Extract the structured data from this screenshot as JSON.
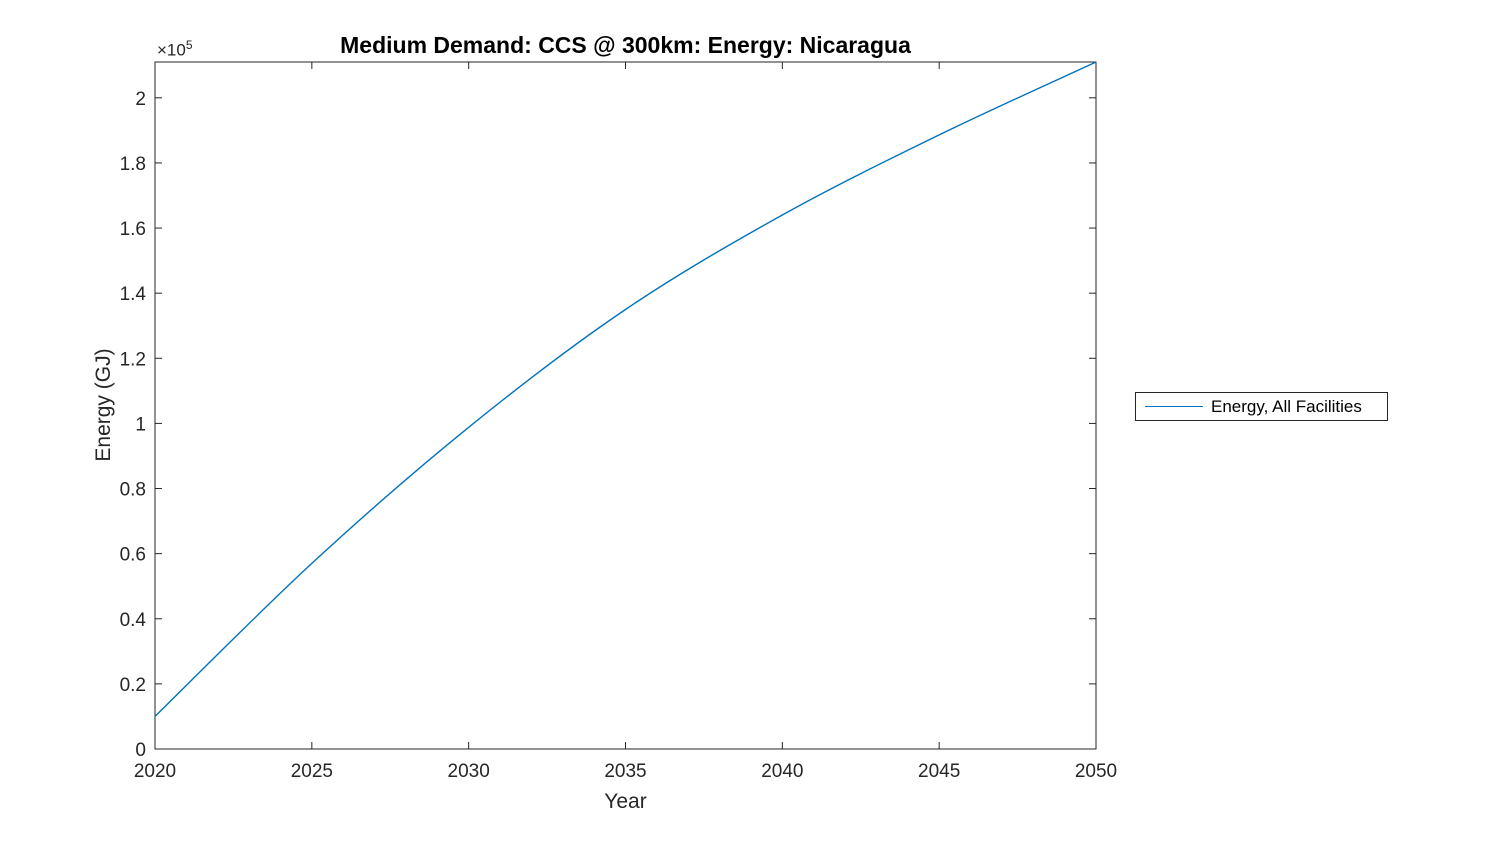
{
  "chart_data": {
    "type": "line",
    "title": "Medium Demand: CCS @ 300km: Energy: Nicaragua",
    "xlabel": "Year",
    "ylabel": "Energy (GJ)",
    "y_axis_multiplier": {
      "prefix": "×10",
      "exponent": "5"
    },
    "xlim": [
      2020,
      2050
    ],
    "ylim": [
      0,
      211000
    ],
    "xticks": [
      2020,
      2025,
      2030,
      2035,
      2040,
      2045,
      2050
    ],
    "xtick_labels": [
      "2020",
      "2025",
      "2030",
      "2035",
      "2040",
      "2045",
      "2050"
    ],
    "yticks": [
      0,
      20000,
      40000,
      60000,
      80000,
      100000,
      120000,
      140000,
      160000,
      180000,
      200000
    ],
    "ytick_labels": [
      "0",
      "0.2",
      "0.4",
      "0.6",
      "0.8",
      "1",
      "1.2",
      "1.4",
      "1.6",
      "1.8",
      "2"
    ],
    "grid": false,
    "legend": {
      "position": "right-outside",
      "entries": [
        "Energy, All Facilities"
      ]
    },
    "series": [
      {
        "name": "Energy, All Facilities",
        "color": "#0072BD",
        "x": [
          2020,
          2025,
          2030,
          2035,
          2040,
          2045,
          2050
        ],
        "y": [
          10000,
          57000,
          98800,
          135000,
          164000,
          188600,
          211000
        ]
      }
    ],
    "colors": {
      "line": "#0072BD",
      "axis": "#262626",
      "tick_text": "#262626",
      "title": "#000000",
      "background": "#ffffff"
    }
  }
}
